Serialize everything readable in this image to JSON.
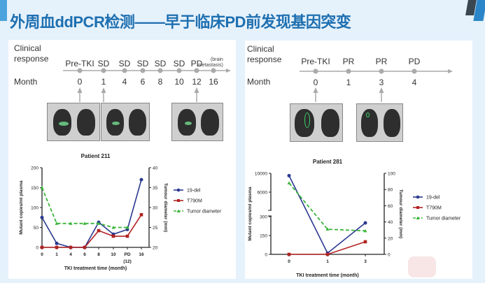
{
  "title": "外周血ddPCR检测——早于临床PD前发现基因突变",
  "left": {
    "response_label": [
      "Clinical",
      "response"
    ],
    "month_label": "Month",
    "responses": [
      "Pre-TKI",
      "SD",
      "SD",
      "SD",
      "SD",
      "SD",
      "PD",
      ""
    ],
    "pd_note": [
      "(brain",
      "metastasis)"
    ],
    "months": [
      "0",
      "1",
      "4",
      "6",
      "8",
      "10",
      "12",
      "16"
    ],
    "ct_at_months": [
      "0",
      "1",
      "12"
    ]
  },
  "right": {
    "response_label": [
      "Clinical",
      "response"
    ],
    "month_label": "Month",
    "responses": [
      "Pre-TKI",
      "PR",
      "PR",
      "PD"
    ],
    "months": [
      "0",
      "1",
      "3",
      "4"
    ],
    "ct_at_months": [
      "0",
      "3"
    ]
  },
  "chart_data": [
    {
      "type": "line",
      "title": "Patient 211",
      "xlabel": "TKI treatment time (month)",
      "ylabel": "Mutant copies/ml plasma",
      "y2label": "Tumour diameter (mm)",
      "categories": [
        "0",
        "1",
        "4",
        "6",
        "8",
        "10",
        "PD\n(12)",
        "16"
      ],
      "ylim": [
        0,
        200
      ],
      "yticks": [
        "0",
        "50",
        "100",
        "150",
        "200"
      ],
      "y2lim": [
        20,
        40
      ],
      "y2ticks": [
        "20",
        "25",
        "30",
        "35",
        "40"
      ],
      "series": [
        {
          "name": "19-del",
          "axis": "left",
          "color": "#2b3990",
          "values": [
            75,
            10,
            0,
            0,
            63,
            33,
            45,
            170
          ]
        },
        {
          "name": "T790M",
          "axis": "left",
          "color": "#b22222",
          "values": [
            0,
            0,
            0,
            0,
            42,
            28,
            28,
            82
          ]
        },
        {
          "name": "Tumor diameter",
          "axis": "right",
          "color": "#3cb53c",
          "dashed": true,
          "values": [
            35,
            26,
            26,
            26,
            26,
            25,
            25,
            null
          ]
        }
      ],
      "legend": "right"
    },
    {
      "type": "line",
      "title": "Patient 281",
      "xlabel": "TKI treatment time (month)",
      "ylabel": "Mutant copies/ml plasma",
      "y2label": "Tumour diameter (mm)",
      "categories": [
        "0",
        "1",
        "3"
      ],
      "ylim_broken": [
        [
          0,
          300
        ],
        [
          2000,
          10000
        ]
      ],
      "yticks": [
        "0",
        "150",
        "300",
        "6000",
        "10000"
      ],
      "y2lim": [
        0,
        100
      ],
      "y2ticks": [
        "0",
        "20",
        "40",
        "60",
        "80",
        "100"
      ],
      "series": [
        {
          "name": "19-del",
          "axis": "left",
          "color": "#2b3990",
          "values": [
            9500,
            10,
            250
          ]
        },
        {
          "name": "T790M",
          "axis": "left",
          "color": "#b22222",
          "values": [
            0,
            0,
            100
          ]
        },
        {
          "name": "Tumor diameter",
          "axis": "right",
          "color": "#3cb53c",
          "dashed": true,
          "values": [
            88,
            31,
            29
          ]
        }
      ],
      "legend": "right"
    }
  ]
}
